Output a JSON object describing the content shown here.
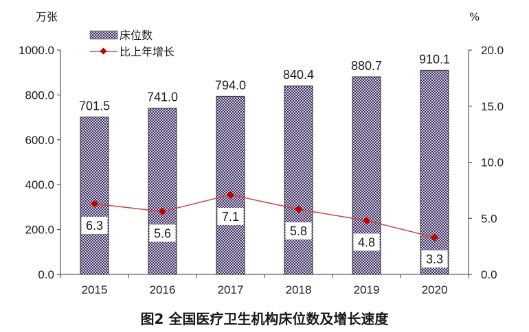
{
  "chart_data": {
    "type": "bar+line",
    "categories": [
      "2015",
      "2016",
      "2017",
      "2018",
      "2019",
      "2020"
    ],
    "series": [
      {
        "name": "床位数",
        "type": "bar",
        "axis": "left",
        "values": [
          701.5,
          741.0,
          794.0,
          840.4,
          880.7,
          910.1
        ],
        "labels": [
          "701.5",
          "741.0",
          "794.0",
          "840.4",
          "880.7",
          "910.1"
        ]
      },
      {
        "name": "比上年增长",
        "type": "line",
        "axis": "right",
        "values": [
          6.3,
          5.6,
          7.1,
          5.8,
          4.8,
          3.3
        ],
        "labels": [
          "6.3",
          "5.6",
          "7.1",
          "5.8",
          "4.8",
          "3.3"
        ]
      }
    ],
    "title": "图2  全国医疗卫生机构床位数及增长速度",
    "yleft_unit": "万张",
    "yright_unit": "%",
    "yleft_lim": [
      0,
      1000
    ],
    "yright_lim": [
      0,
      20
    ],
    "yleft_ticks": [
      "0.0",
      "200.0",
      "400.0",
      "600.0",
      "800.0",
      "1000.0"
    ],
    "yright_ticks": [
      "0.0",
      "5.0",
      "10.0",
      "15.0",
      "20.0"
    ],
    "legend_position": "top-left",
    "grid": false,
    "colors": {
      "bar_fill": "#c9c3d9",
      "bar_hatch": "#3c2f5e",
      "line": "#d04444",
      "marker": "#c00000"
    }
  }
}
